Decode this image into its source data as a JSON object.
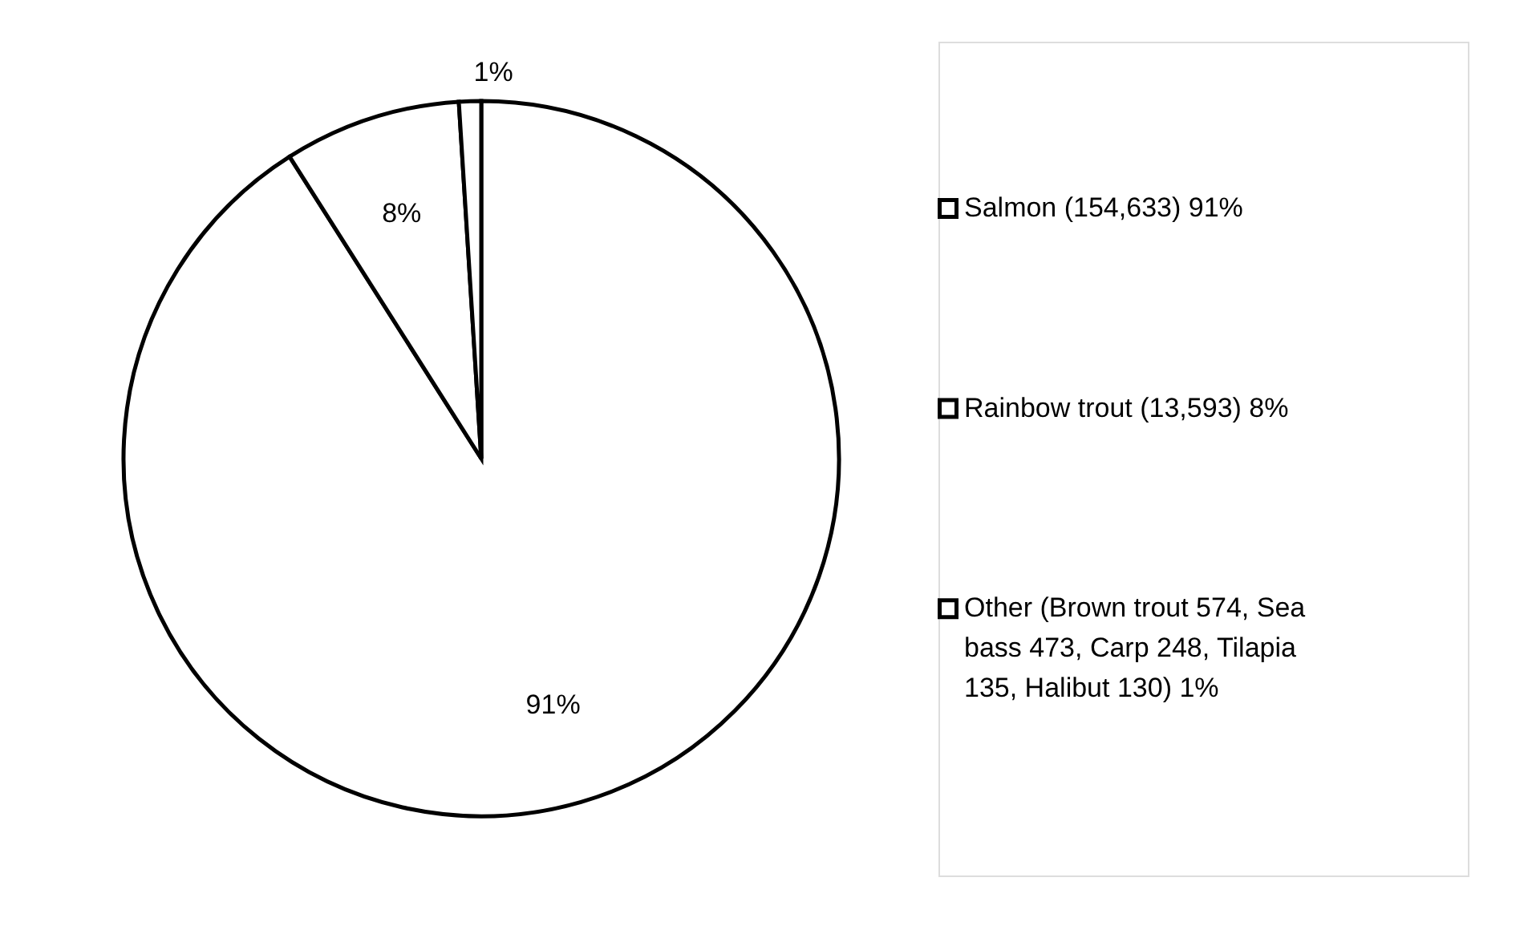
{
  "chart_data": {
    "type": "pie",
    "categories": [
      "Salmon (154,633) 91%",
      "Rainbow trout (13,593) 8%",
      "Other (Brown trout 574, Sea bass 473, Carp 248, Tilapia 135, Halibut 130) 1%"
    ],
    "values": [
      91,
      8,
      1
    ],
    "colors": [
      "#ffffff",
      "#ffffff",
      "#ffffff"
    ],
    "value_labels": [
      "91%",
      "8%",
      "1%"
    ],
    "legend": "right"
  }
}
